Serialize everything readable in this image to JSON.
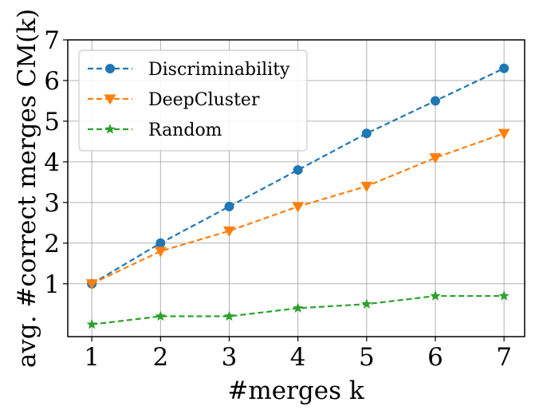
{
  "chart_data": {
    "type": "line",
    "xlabel": "#merges k",
    "ylabel": "avg. #correct merges CM(k)",
    "x": [
      1,
      2,
      3,
      4,
      5,
      6,
      7
    ],
    "x_ticks": [
      "1",
      "2",
      "3",
      "4",
      "5",
      "6",
      "7"
    ],
    "y_ticks": [
      "1",
      "2",
      "3",
      "4",
      "5",
      "6",
      "7"
    ],
    "xlim": [
      0.65,
      7.3
    ],
    "ylim": [
      -0.3,
      7
    ],
    "grid": true,
    "legend": "upper left",
    "series": [
      {
        "name": "Discriminability",
        "color": "#1f77b4",
        "marker": "circle",
        "values": [
          1.0,
          2.0,
          2.9,
          3.8,
          4.7,
          5.5,
          6.3
        ]
      },
      {
        "name": "DeepCluster",
        "color": "#ff7f0e",
        "marker": "triangle-down",
        "values": [
          1.0,
          1.8,
          2.3,
          2.9,
          3.4,
          4.1,
          4.7
        ]
      },
      {
        "name": "Random",
        "color": "#2ca02c",
        "marker": "star",
        "values": [
          0.0,
          0.2,
          0.2,
          0.4,
          0.5,
          0.7,
          0.7
        ]
      }
    ]
  }
}
